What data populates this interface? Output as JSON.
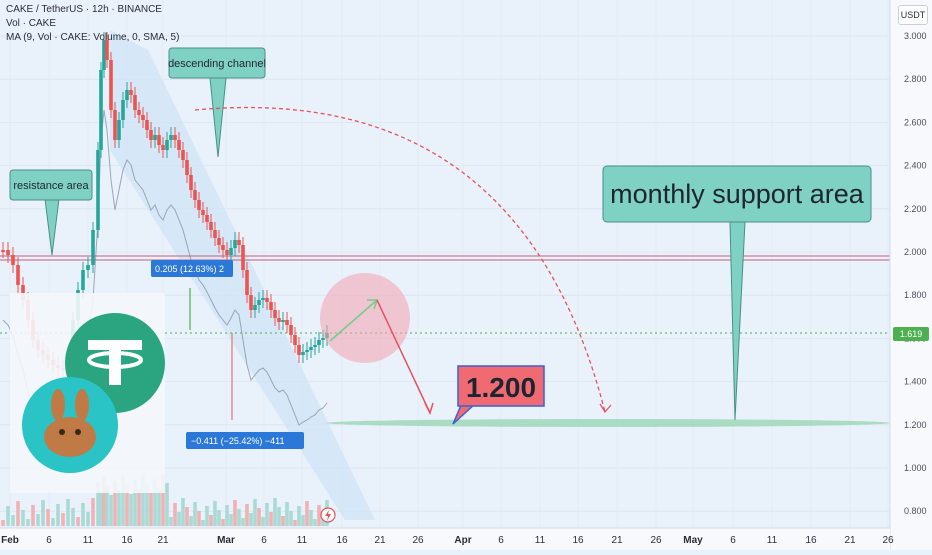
{
  "header": {
    "symbol_line": "CAKE / TetherUS · 12h · BINANCE",
    "vol_line": "Vol · CAKE",
    "ma_line": "MA (9, Vol · CAKE: Volume, 0, SMA, 5)"
  },
  "currency_label": "USDT",
  "price_axis": [
    "3.000",
    "2.800",
    "2.600",
    "2.400",
    "2.200",
    "2.000",
    "1.800",
    "1.600",
    "1.400",
    "1.200",
    "1.000",
    "0.800"
  ],
  "current_price": "1.619",
  "time_axis": [
    "Feb",
    "6",
    "11",
    "16",
    "21",
    "Mar",
    "6",
    "11",
    "16",
    "21",
    "26",
    "Apr",
    "6",
    "11",
    "16",
    "21",
    "26",
    "May",
    "6",
    "11",
    "16",
    "21",
    "26"
  ],
  "annotations": {
    "descending_channel": "descending channel",
    "resistance_area": "resistance area",
    "monthly_support": "monthly support area",
    "target_price": "1.200",
    "measure_up": "0.205 (12.63%) 2",
    "measure_down": "−0.411 (−25.42%) −411"
  },
  "logos": {
    "tether": "tether-logo",
    "pancakeswap": "pancakeswap-logo"
  },
  "colors": {
    "background": "#e9f1fb",
    "bull_candle": "#26a69a",
    "bear_candle": "#ef5350",
    "callout_fill": "#7fd1c3",
    "target_fill": "#f06a72",
    "measure_blue": "#2b78d8",
    "support_band": "#9fd8b8"
  }
}
